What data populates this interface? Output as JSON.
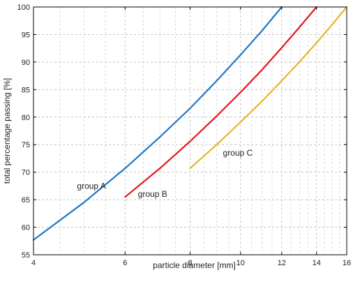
{
  "chart_data": {
    "type": "line",
    "x_scale": "log",
    "xlabel": "particle diameter [mm]",
    "ylabel": "total percentage passing [%]",
    "xlim": [
      4,
      16
    ],
    "ylim": [
      55,
      100
    ],
    "grid": true,
    "x_ticks": [
      4,
      6,
      8,
      10,
      12,
      14,
      16
    ],
    "y_ticks": [
      55,
      60,
      65,
      70,
      75,
      80,
      85,
      90,
      95,
      100
    ],
    "series": [
      {
        "name": "group A",
        "color": "#1f77c8",
        "x": [
          4,
          5,
          6,
          7,
          8,
          9,
          10,
          11,
          12
        ],
        "y": [
          57.7,
          64.5,
          70.7,
          76.4,
          81.6,
          86.6,
          91.3,
          95.7,
          100
        ]
      },
      {
        "name": "group B",
        "color": "#e8151c",
        "x": [
          6,
          7,
          8,
          9,
          10,
          11,
          12,
          13,
          14
        ],
        "y": [
          65.5,
          70.7,
          75.6,
          80.2,
          84.5,
          88.6,
          92.6,
          96.4,
          100
        ]
      },
      {
        "name": "group C",
        "color": "#eab42a",
        "x": [
          8,
          9,
          10,
          11,
          12,
          13,
          14,
          15,
          16
        ],
        "y": [
          70.7,
          75.0,
          79.1,
          82.9,
          86.6,
          90.1,
          93.5,
          96.8,
          100
        ]
      }
    ]
  }
}
